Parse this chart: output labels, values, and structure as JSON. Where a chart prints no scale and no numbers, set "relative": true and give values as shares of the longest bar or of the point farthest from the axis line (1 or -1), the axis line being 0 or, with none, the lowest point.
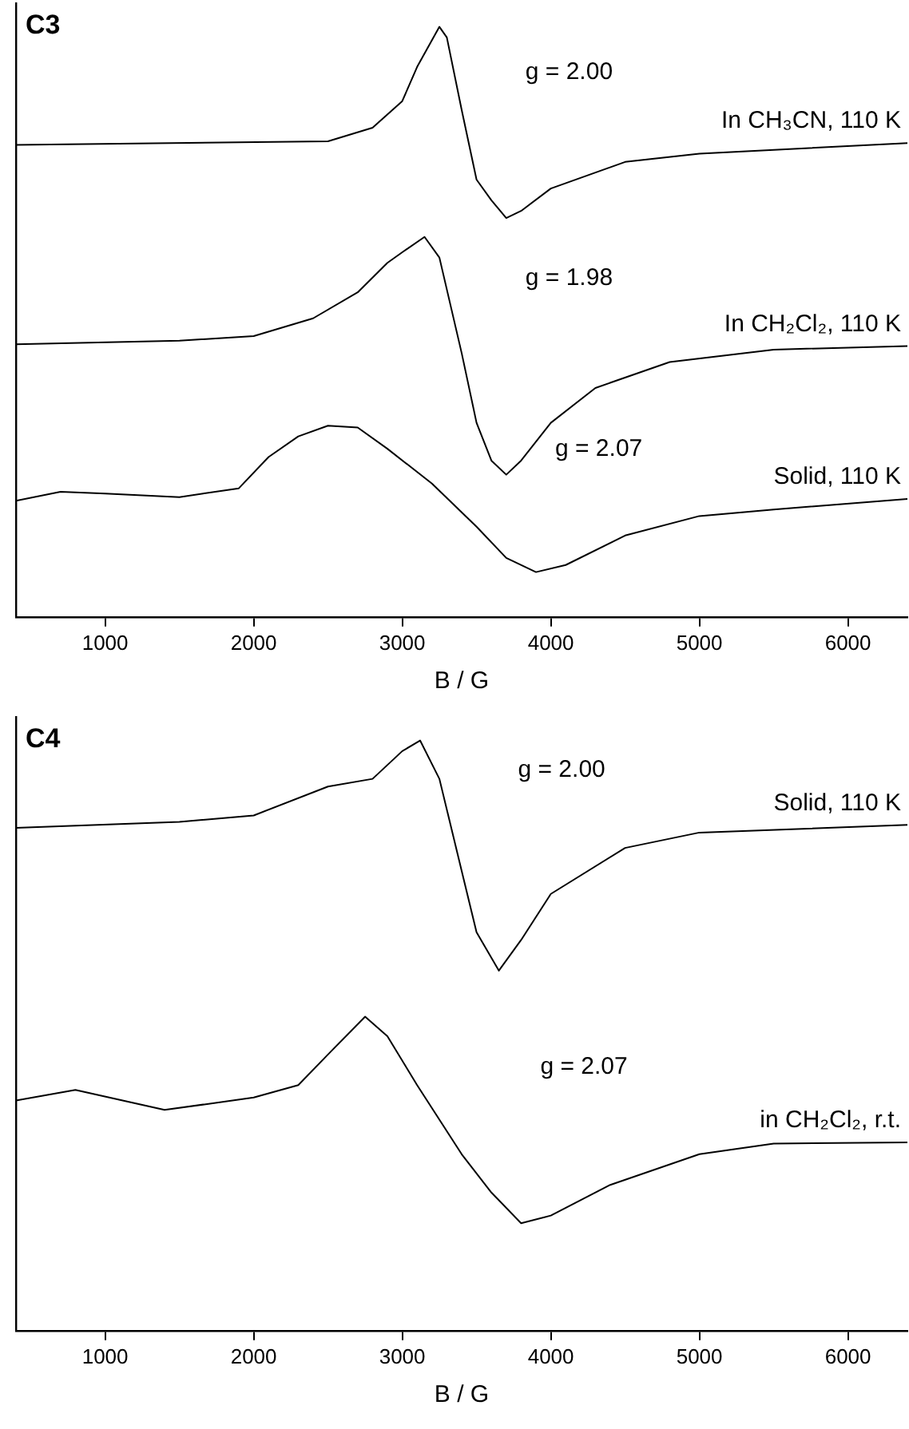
{
  "chart_data": [
    {
      "type": "line",
      "title": "C3",
      "xlabel": "B / G",
      "relative": true,
      "xlim": [
        400,
        6400
      ],
      "xticks": [
        1000,
        2000,
        3000,
        4000,
        5000,
        6000
      ],
      "tick_labels": "x",
      "legend": false,
      "grid": false,
      "marker": "none",
      "line_style": "solid",
      "series": [
        {
          "name": "In CH₃CN, 110 K",
          "color": "#000000",
          "x": [
            400,
            2500,
            2800,
            3000,
            3100,
            3250,
            3300,
            3400,
            3500,
            3600,
            3700,
            3800,
            4000,
            4500,
            5000,
            6400
          ],
          "values": [
            0.8,
            0.806,
            0.829,
            0.874,
            0.932,
            1.0,
            0.982,
            0.859,
            0.741,
            0.706,
            0.676,
            0.688,
            0.726,
            0.771,
            0.785,
            0.803
          ]
        },
        {
          "name": "In CH₂Cl₂, 110 K",
          "color": "#000000",
          "x": [
            400,
            1500,
            2000,
            2400,
            2700,
            2900,
            3000,
            3150,
            3250,
            3400,
            3500,
            3600,
            3700,
            3800,
            4000,
            4300,
            4800,
            5500,
            6400
          ],
          "values": [
            0.462,
            0.468,
            0.476,
            0.506,
            0.55,
            0.6,
            0.618,
            0.644,
            0.609,
            0.447,
            0.329,
            0.265,
            0.241,
            0.265,
            0.329,
            0.388,
            0.432,
            0.453,
            0.459
          ]
        },
        {
          "name": "Solid, 110 K",
          "color": "#000000",
          "x": [
            400,
            700,
            1000,
            1500,
            1900,
            2100,
            2300,
            2500,
            2700,
            2900,
            3200,
            3500,
            3700,
            3900,
            4100,
            4500,
            5000,
            5500,
            6400
          ],
          "values": [
            0.197,
            0.212,
            0.209,
            0.203,
            0.218,
            0.271,
            0.306,
            0.324,
            0.321,
            0.285,
            0.226,
            0.153,
            0.1,
            0.076,
            0.088,
            0.138,
            0.171,
            0.182,
            0.2
          ]
        }
      ],
      "annotations": [
        "g = 2.00",
        "g = 1.98",
        "g = 2.07"
      ]
    },
    {
      "type": "line",
      "title": "C4",
      "xlabel": "B / G",
      "relative": true,
      "xlim": [
        400,
        6400
      ],
      "xticks": [
        1000,
        2000,
        3000,
        4000,
        5000,
        6000
      ],
      "tick_labels": "x",
      "legend": false,
      "grid": false,
      "marker": "none",
      "line_style": "solid",
      "series": [
        {
          "name": "Solid, 110 K",
          "color": "#000000",
          "x": [
            400,
            1500,
            2000,
            2500,
            2800,
            3000,
            3120,
            3250,
            3400,
            3500,
            3650,
            3800,
            4000,
            4500,
            5000,
            6400
          ],
          "values": [
            0.852,
            0.862,
            0.873,
            0.922,
            0.935,
            0.982,
            1.0,
            0.935,
            0.779,
            0.675,
            0.61,
            0.662,
            0.74,
            0.818,
            0.844,
            0.857
          ]
        },
        {
          "name": "in CH₂Cl₂, r.t.",
          "color": "#000000",
          "x": [
            400,
            800,
            1400,
            2000,
            2300,
            2500,
            2750,
            2900,
            3100,
            3400,
            3600,
            3800,
            4000,
            4400,
            5000,
            5500,
            6400
          ],
          "values": [
            0.39,
            0.408,
            0.374,
            0.395,
            0.416,
            0.468,
            0.532,
            0.499,
            0.416,
            0.299,
            0.234,
            0.182,
            0.195,
            0.247,
            0.299,
            0.317,
            0.319
          ]
        }
      ],
      "annotations": [
        "g = 2.00",
        "g = 2.07"
      ]
    }
  ]
}
